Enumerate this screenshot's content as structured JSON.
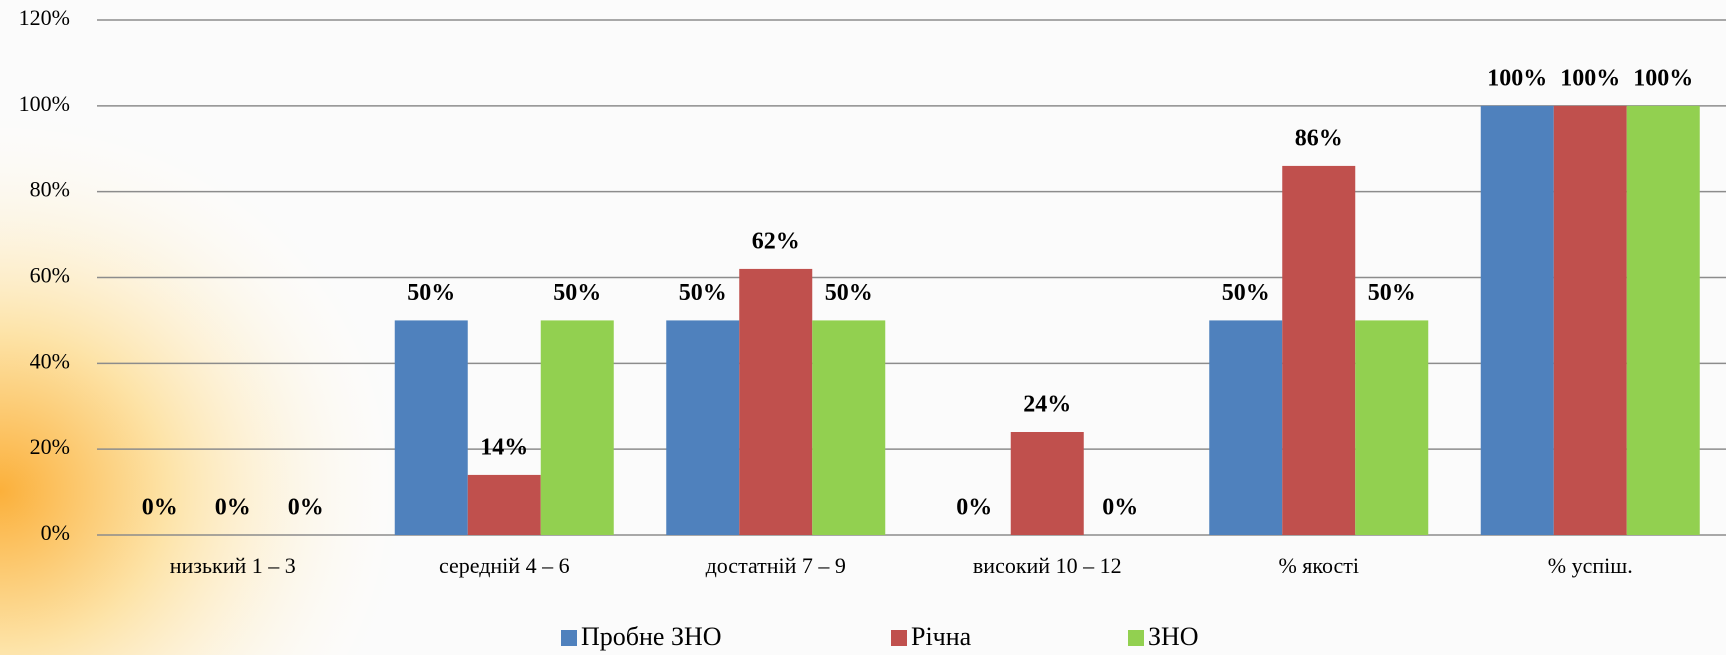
{
  "chart_data": {
    "type": "bar",
    "categories": [
      "низький 1 – 3",
      "середній 4 – 6",
      "достатній 7 – 9",
      "високий 10 – 12",
      "% якості",
      "% успіш."
    ],
    "series": [
      {
        "name": "Пробне ЗНО",
        "color": "#4f81bd",
        "values": [
          0,
          50,
          50,
          0,
          50,
          100
        ],
        "value_labels": [
          "0%",
          "50%",
          "50%",
          "0%",
          "50%",
          "100%"
        ]
      },
      {
        "name": "Річна",
        "color": "#c0504d",
        "values": [
          0,
          14,
          62,
          24,
          86,
          100
        ],
        "value_labels": [
          "0%",
          "14%",
          "62%",
          "24%",
          "86%",
          "100%"
        ]
      },
      {
        "name": "ЗНО",
        "color": "#92d050",
        "values": [
          0,
          50,
          50,
          0,
          50,
          100
        ],
        "value_labels": [
          "0%",
          "50%",
          "50%",
          "0%",
          "50%",
          "100%"
        ]
      }
    ],
    "ylim": [
      0,
      120
    ],
    "yticks": [
      {
        "value": 0,
        "label": "0%"
      },
      {
        "value": 20,
        "label": "20%"
      },
      {
        "value": 40,
        "label": "40%"
      },
      {
        "value": 60,
        "label": "60%"
      },
      {
        "value": 80,
        "label": "80%"
      },
      {
        "value": 100,
        "label": "100%"
      },
      {
        "value": 120,
        "label": "120%"
      }
    ],
    "grid": true,
    "legend": "bottom"
  }
}
